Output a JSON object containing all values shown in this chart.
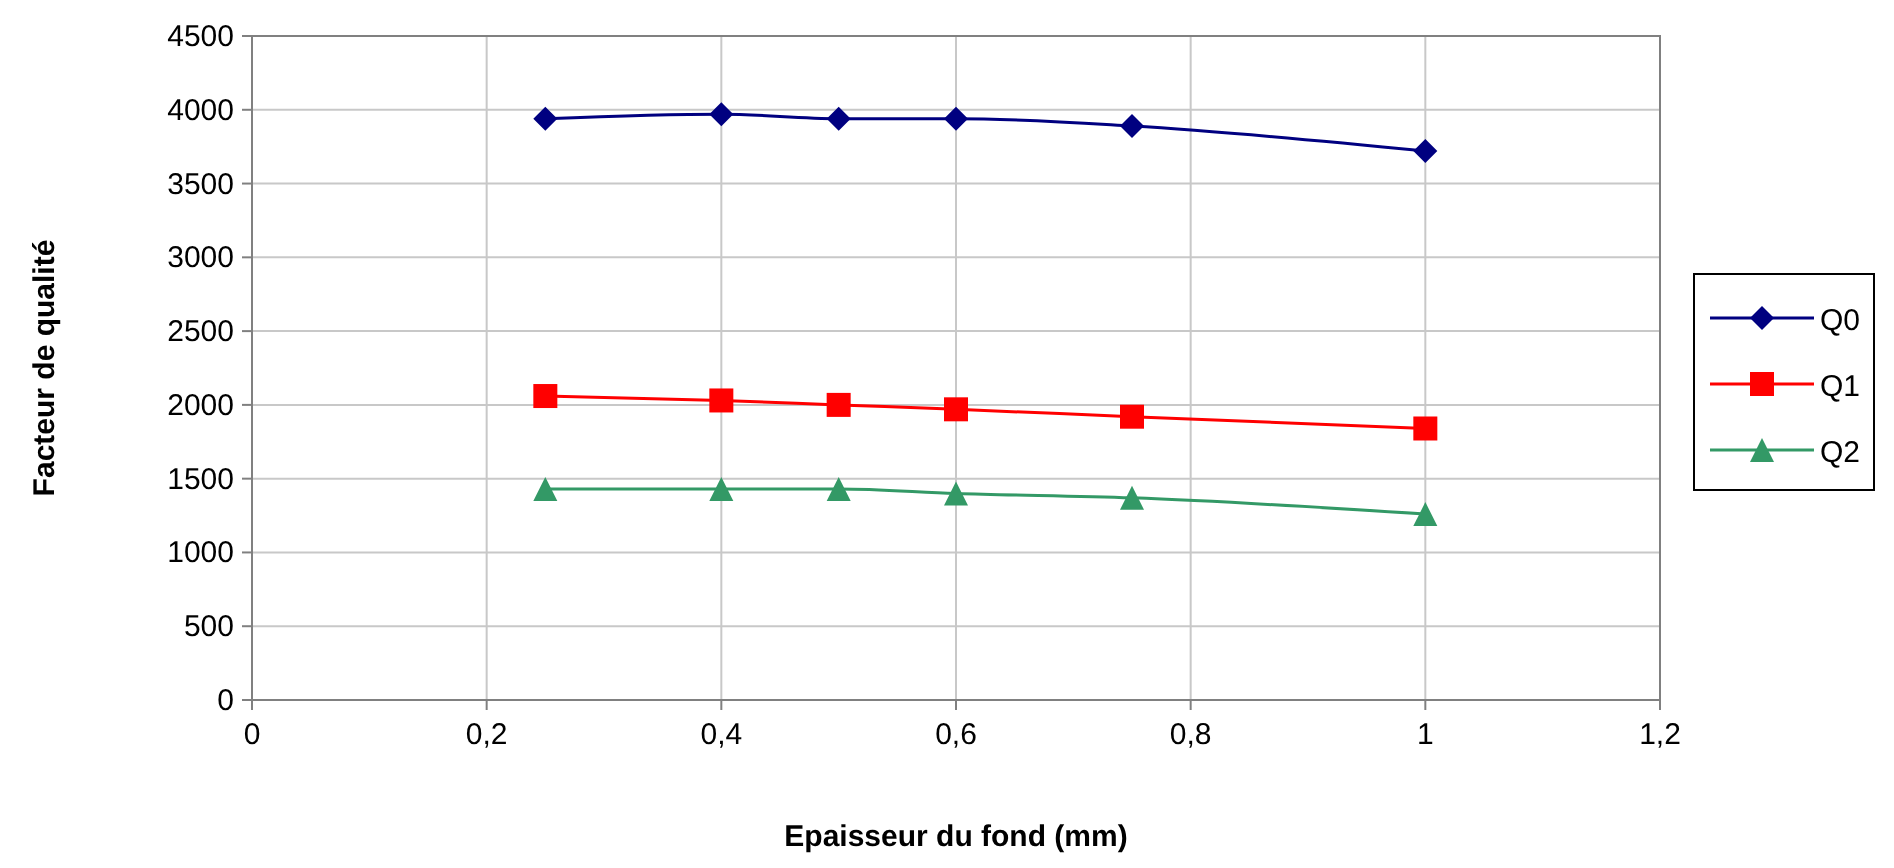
{
  "chart_data": {
    "type": "line",
    "xlabel": "Epaisseur du fond (mm)",
    "ylabel": "Facteur de qualité",
    "x": [
      0.25,
      0.4,
      0.5,
      0.6,
      0.75,
      1
    ],
    "series": [
      {
        "name": "Q0",
        "color": "#000080",
        "marker": "diamond",
        "values": [
          3940,
          3970,
          3940,
          3940,
          3890,
          3720
        ]
      },
      {
        "name": "Q1",
        "color": "#ff0000",
        "marker": "square",
        "values": [
          2060,
          2030,
          2000,
          1970,
          1920,
          1840
        ]
      },
      {
        "name": "Q2",
        "color": "#339966",
        "marker": "triangle",
        "values": [
          1430,
          1430,
          1430,
          1400,
          1370,
          1260
        ]
      }
    ],
    "xlim": [
      0,
      1.2
    ],
    "xticks": [
      {
        "value": 0,
        "label": "0"
      },
      {
        "value": 0.2,
        "label": "0,2"
      },
      {
        "value": 0.4,
        "label": "0,4"
      },
      {
        "value": 0.6,
        "label": "0,6"
      },
      {
        "value": 0.8,
        "label": "0,8"
      },
      {
        "value": 1,
        "label": "1"
      },
      {
        "value": 1.2,
        "label": "1,2"
      }
    ],
    "ylim": [
      0,
      4500
    ],
    "yticks": [
      0,
      500,
      1000,
      1500,
      2000,
      2500,
      3000,
      3500,
      4000,
      4500
    ],
    "grid": true,
    "legend": "right",
    "line_style": "solid"
  }
}
